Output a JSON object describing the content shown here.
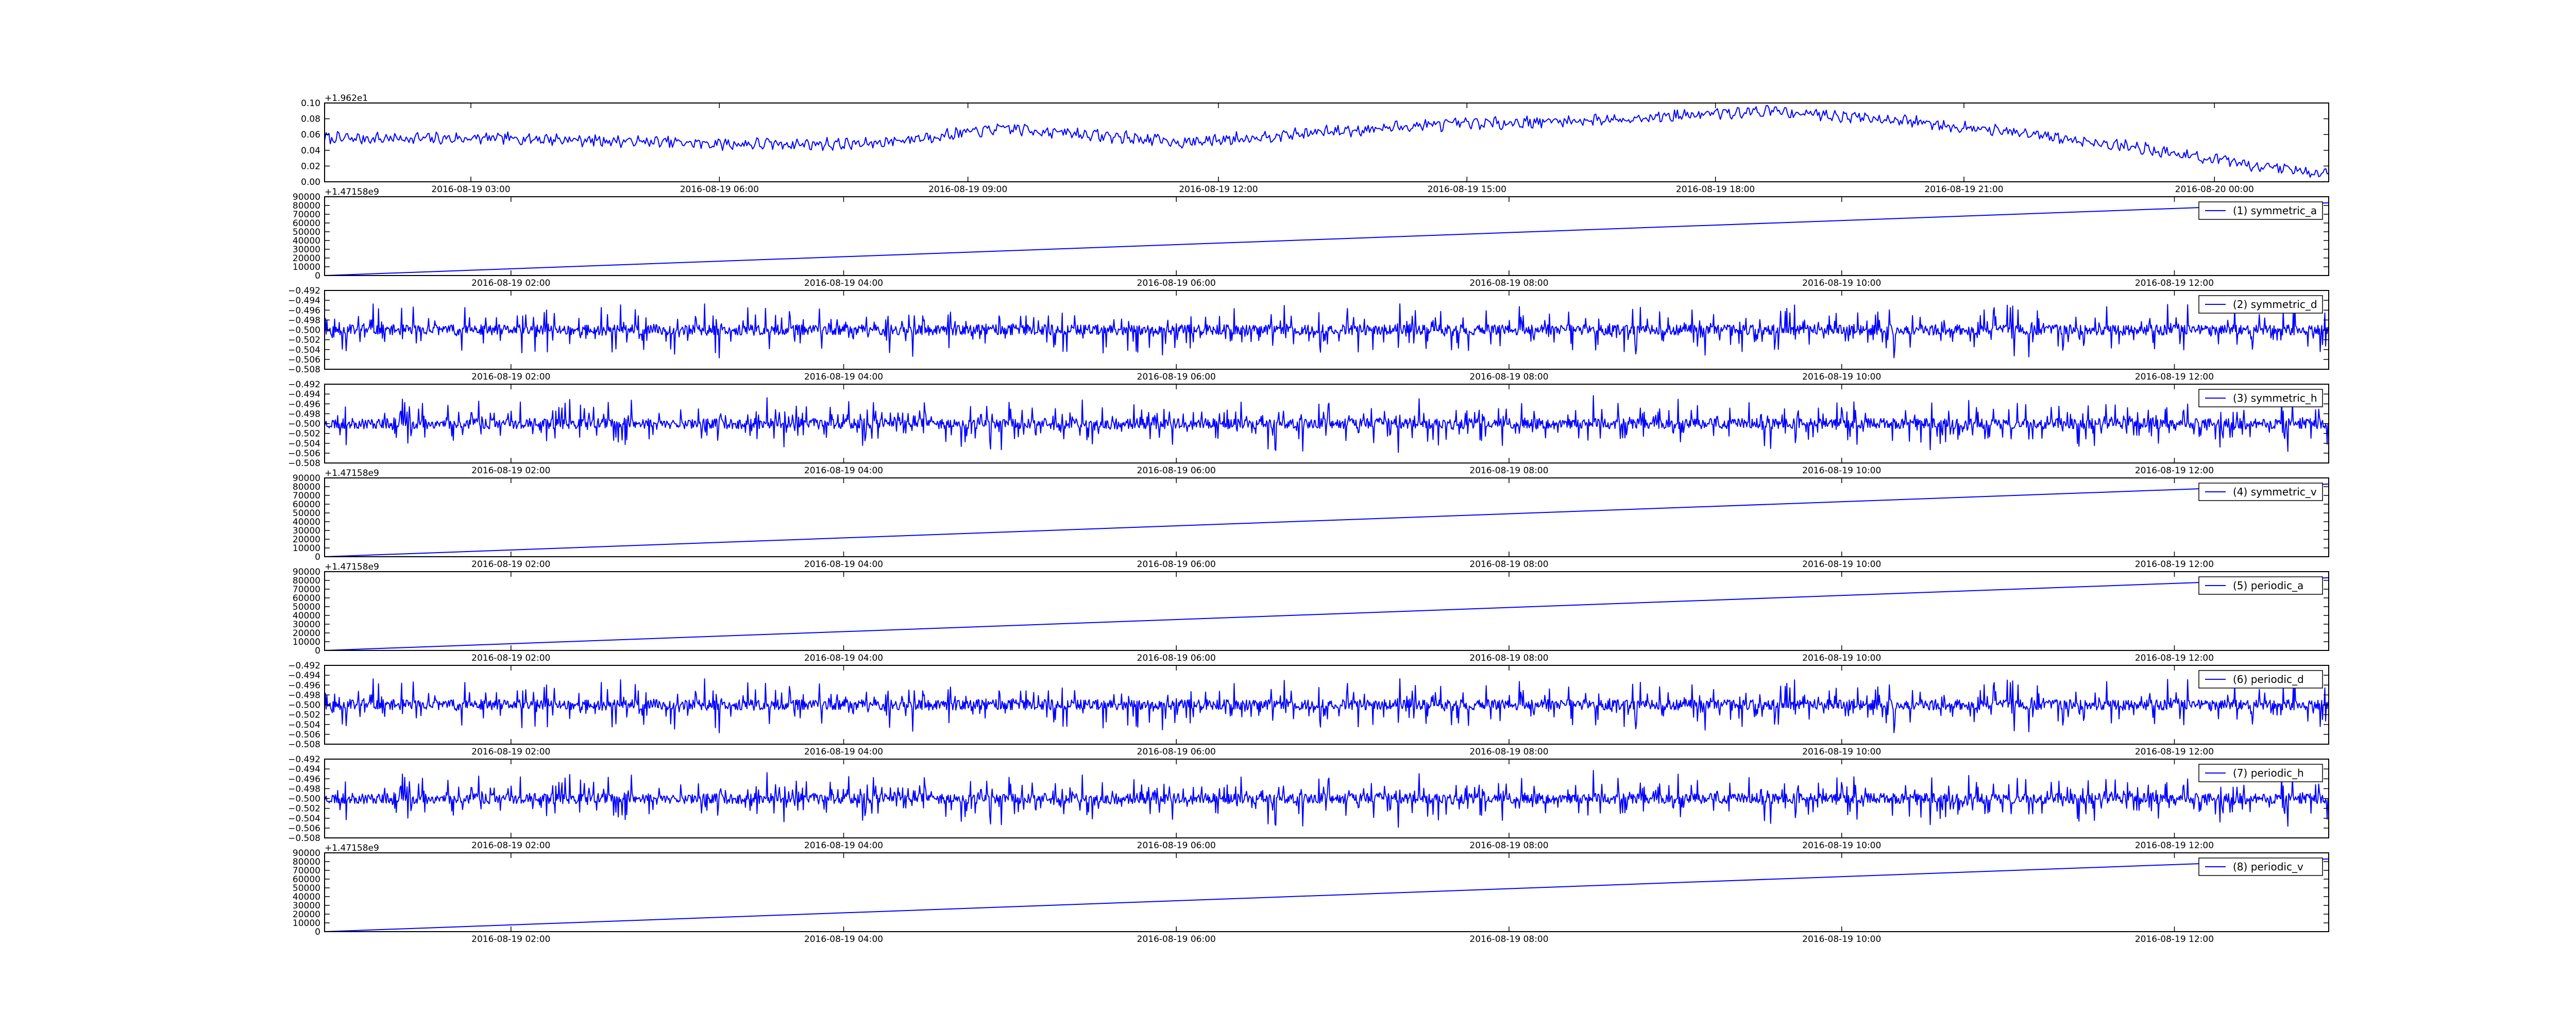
{
  "figure": {
    "line_color": "#0000ff",
    "axes_color": "#000000",
    "background": "#ffffff"
  },
  "chart_data": [
    {
      "type": "line",
      "offset_label": "+1.962e1",
      "ylim": [
        0.0,
        0.1
      ],
      "yticks": [
        "0.00",
        "0.02",
        "0.04",
        "0.06",
        "0.08",
        "0.10"
      ],
      "xticks": [
        "2016-08-19 03:00",
        "2016-08-19 06:00",
        "2016-08-19 09:00",
        "2016-08-19 12:00",
        "2016-08-19 15:00",
        "2016-08-19 18:00",
        "2016-08-19 21:00",
        "2016-08-20 00:00"
      ],
      "xtick_fractions": [
        0.073,
        0.197,
        0.321,
        0.446,
        0.57,
        0.694,
        0.818,
        0.943
      ],
      "series": [
        {
          "kind": "drift",
          "points": [
            [
              0.0,
              0.055
            ],
            [
              0.1,
              0.055
            ],
            [
              0.2,
              0.048
            ],
            [
              0.27,
              0.048
            ],
            [
              0.34,
              0.068
            ],
            [
              0.43,
              0.05
            ],
            [
              0.47,
              0.058
            ],
            [
              0.55,
              0.072
            ],
            [
              0.63,
              0.078
            ],
            [
              0.72,
              0.09
            ],
            [
              0.78,
              0.08
            ],
            [
              0.84,
              0.063
            ],
            [
              0.9,
              0.045
            ],
            [
              0.95,
              0.025
            ],
            [
              1.0,
              0.01
            ]
          ],
          "noise": 0.006
        }
      ],
      "legend": null
    },
    {
      "type": "line",
      "offset_label": "+1.47158e9",
      "ylim": [
        0,
        90000
      ],
      "yticks": [
        "0",
        "10000",
        "20000",
        "30000",
        "40000",
        "50000",
        "60000",
        "70000",
        "80000",
        "90000"
      ],
      "xticks": [
        "2016-08-19 02:00",
        "2016-08-19 04:00",
        "2016-08-19 06:00",
        "2016-08-19 08:00",
        "2016-08-19 10:00",
        "2016-08-19 12:00"
      ],
      "xtick_fractions": [
        0.093,
        0.259,
        0.425,
        0.591,
        0.757,
        0.923
      ],
      "series": [
        {
          "name": "(1) symmetric_a",
          "kind": "linear",
          "points": [
            [
              0.0,
              0
            ],
            [
              1.0,
              83000
            ]
          ]
        }
      ],
      "legend": {
        "label": "(1) symmetric_a",
        "loc": "upper right"
      }
    },
    {
      "type": "line",
      "ylim": [
        -0.508,
        -0.492
      ],
      "yticks": [
        "−0.508",
        "−0.506",
        "−0.504",
        "−0.502",
        "−0.500",
        "−0.498",
        "−0.496",
        "−0.494",
        "−0.492"
      ],
      "xticks": [
        "2016-08-19 02:00",
        "2016-08-19 04:00",
        "2016-08-19 06:00",
        "2016-08-19 08:00",
        "2016-08-19 10:00",
        "2016-08-19 12:00"
      ],
      "xtick_fractions": [
        0.093,
        0.259,
        0.425,
        0.591,
        0.757,
        0.923
      ],
      "series": [
        {
          "name": "(2) symmetric_d",
          "kind": "noise",
          "center": -0.5,
          "spread": 0.006,
          "seed": 11
        }
      ],
      "legend": {
        "label": "(2) symmetric_d",
        "loc": "upper right"
      }
    },
    {
      "type": "line",
      "ylim": [
        -0.508,
        -0.492
      ],
      "yticks": [
        "−0.508",
        "−0.506",
        "−0.504",
        "−0.502",
        "−0.500",
        "−0.498",
        "−0.496",
        "−0.494",
        "−0.492"
      ],
      "xticks": [
        "2016-08-19 02:00",
        "2016-08-19 04:00",
        "2016-08-19 06:00",
        "2016-08-19 08:00",
        "2016-08-19 10:00",
        "2016-08-19 12:00"
      ],
      "xtick_fractions": [
        0.093,
        0.259,
        0.425,
        0.591,
        0.757,
        0.923
      ],
      "series": [
        {
          "name": "(3) symmetric_h",
          "kind": "noise",
          "center": -0.5,
          "spread": 0.006,
          "seed": 23
        }
      ],
      "legend": {
        "label": "(3) symmetric_h",
        "loc": "upper right"
      }
    },
    {
      "type": "line",
      "offset_label": "+1.47158e9",
      "ylim": [
        0,
        90000
      ],
      "yticks": [
        "0",
        "10000",
        "20000",
        "30000",
        "40000",
        "50000",
        "60000",
        "70000",
        "80000",
        "90000"
      ],
      "xticks": [
        "2016-08-19 02:00",
        "2016-08-19 04:00",
        "2016-08-19 06:00",
        "2016-08-19 08:00",
        "2016-08-19 10:00",
        "2016-08-19 12:00"
      ],
      "xtick_fractions": [
        0.093,
        0.259,
        0.425,
        0.591,
        0.757,
        0.923
      ],
      "series": [
        {
          "name": "(4) symmetric_v",
          "kind": "linear",
          "points": [
            [
              0.0,
              0
            ],
            [
              1.0,
              83000
            ]
          ]
        }
      ],
      "legend": {
        "label": "(4) symmetric_v",
        "loc": "upper right"
      }
    },
    {
      "type": "line",
      "offset_label": "+1.47158e9",
      "ylim": [
        0,
        90000
      ],
      "yticks": [
        "0",
        "10000",
        "20000",
        "30000",
        "40000",
        "50000",
        "60000",
        "70000",
        "80000",
        "90000"
      ],
      "xticks": [
        "2016-08-19 02:00",
        "2016-08-19 04:00",
        "2016-08-19 06:00",
        "2016-08-19 08:00",
        "2016-08-19 10:00",
        "2016-08-19 12:00"
      ],
      "xtick_fractions": [
        0.093,
        0.259,
        0.425,
        0.591,
        0.757,
        0.923
      ],
      "series": [
        {
          "name": "(5) periodic_a",
          "kind": "linear",
          "points": [
            [
              0.0,
              0
            ],
            [
              1.0,
              83000
            ]
          ]
        }
      ],
      "legend": {
        "label": "(5) periodic_a",
        "loc": "upper right"
      }
    },
    {
      "type": "line",
      "ylim": [
        -0.508,
        -0.492
      ],
      "yticks": [
        "−0.508",
        "−0.506",
        "−0.504",
        "−0.502",
        "−0.500",
        "−0.498",
        "−0.496",
        "−0.494",
        "−0.492"
      ],
      "xticks": [
        "2016-08-19 02:00",
        "2016-08-19 04:00",
        "2016-08-19 06:00",
        "2016-08-19 08:00",
        "2016-08-19 10:00",
        "2016-08-19 12:00"
      ],
      "xtick_fractions": [
        0.093,
        0.259,
        0.425,
        0.591,
        0.757,
        0.923
      ],
      "series": [
        {
          "name": "(6) periodic_d",
          "kind": "noise",
          "center": -0.5,
          "spread": 0.006,
          "seed": 11
        }
      ],
      "legend": {
        "label": "(6) periodic_d",
        "loc": "upper right"
      }
    },
    {
      "type": "line",
      "ylim": [
        -0.508,
        -0.492
      ],
      "yticks": [
        "−0.508",
        "−0.506",
        "−0.504",
        "−0.502",
        "−0.500",
        "−0.498",
        "−0.496",
        "−0.494",
        "−0.492"
      ],
      "xticks": [
        "2016-08-19 02:00",
        "2016-08-19 04:00",
        "2016-08-19 06:00",
        "2016-08-19 08:00",
        "2016-08-19 10:00",
        "2016-08-19 12:00"
      ],
      "xtick_fractions": [
        0.093,
        0.259,
        0.425,
        0.591,
        0.757,
        0.923
      ],
      "series": [
        {
          "name": "(7) periodic_h",
          "kind": "noise",
          "center": -0.5,
          "spread": 0.006,
          "seed": 23
        }
      ],
      "legend": {
        "label": "(7) periodic_h",
        "loc": "upper right"
      }
    },
    {
      "type": "line",
      "offset_label": "+1.47158e9",
      "ylim": [
        0,
        90000
      ],
      "yticks": [
        "0",
        "10000",
        "20000",
        "30000",
        "40000",
        "50000",
        "60000",
        "70000",
        "80000",
        "90000"
      ],
      "xticks": [
        "2016-08-19 02:00",
        "2016-08-19 04:00",
        "2016-08-19 06:00",
        "2016-08-19 08:00",
        "2016-08-19 10:00",
        "2016-08-19 12:00"
      ],
      "xtick_fractions": [
        0.093,
        0.259,
        0.425,
        0.591,
        0.757,
        0.923
      ],
      "series": [
        {
          "name": "(8) periodic_v",
          "kind": "linear",
          "points": [
            [
              0.0,
              0
            ],
            [
              1.0,
              83000
            ]
          ]
        }
      ],
      "legend": {
        "label": "(8) periodic_v",
        "loc": "upper right"
      }
    }
  ]
}
